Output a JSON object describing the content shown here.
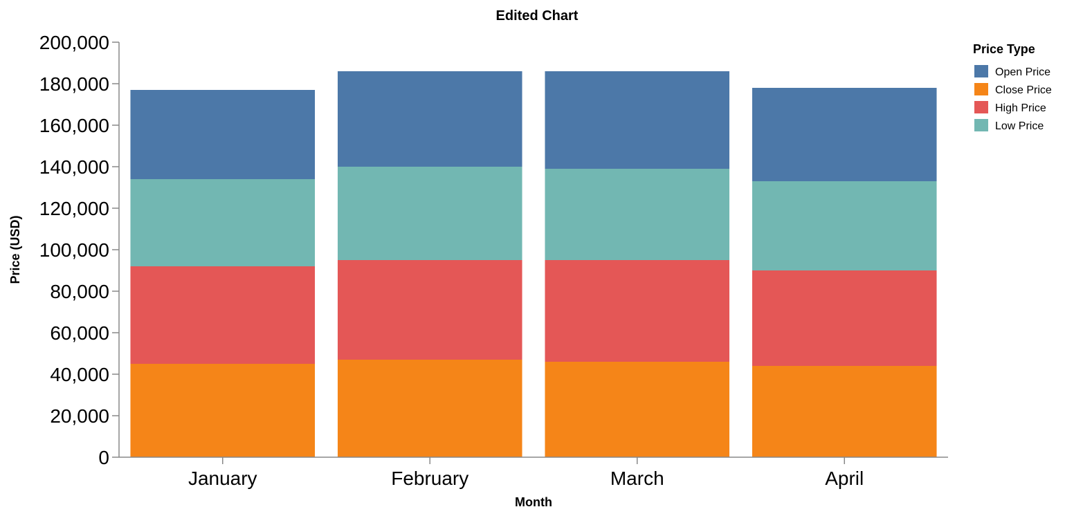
{
  "chart_data": {
    "type": "bar",
    "stacked": true,
    "title": "Edited Chart",
    "xlabel": "Month",
    "ylabel": "Price (USD)",
    "ylim": [
      0,
      200000
    ],
    "yticks": [
      "0",
      "20,000",
      "40,000",
      "60,000",
      "80,000",
      "100,000",
      "120,000",
      "140,000",
      "160,000",
      "180,000",
      "200,000"
    ],
    "categories": [
      "January",
      "February",
      "March",
      "April"
    ],
    "series": [
      {
        "name": "Close Price",
        "color": "#f58518",
        "values": [
          45000,
          47000,
          46000,
          44000
        ]
      },
      {
        "name": "High Price",
        "color": "#e45756",
        "values": [
          47000,
          48000,
          49000,
          46000
        ]
      },
      {
        "name": "Low Price",
        "color": "#72b7b2",
        "values": [
          42000,
          45000,
          44000,
          43000
        ]
      },
      {
        "name": "Open Price",
        "color": "#4c78a8",
        "values": [
          43000,
          46000,
          47000,
          45000
        ]
      }
    ],
    "legend": {
      "title": "Price Type",
      "position": "top-right",
      "entries": [
        {
          "label": "Open Price",
          "color": "#4c78a8"
        },
        {
          "label": "Close Price",
          "color": "#f58518"
        },
        {
          "label": "High Price",
          "color": "#e45756"
        },
        {
          "label": "Low Price",
          "color": "#72b7b2"
        }
      ]
    },
    "grid": false
  }
}
